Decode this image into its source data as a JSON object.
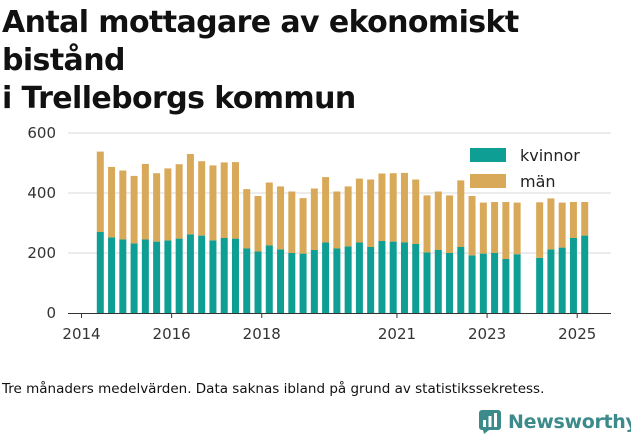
{
  "header": {
    "title_line1": "Antal mottagare av ekonomiskt bistånd",
    "title_line2": "i Trelleborgs kommun"
  },
  "footnote": "Tre månaders medelvärden. Data saknas ibland på grund av statistikssekretess.",
  "brand": {
    "name": "Newsworthy",
    "icon": "newsworthy-logo-icon",
    "color": "#3d8a8a"
  },
  "chart_data": {
    "type": "bar",
    "stacked": true,
    "title": "",
    "xlabel": "",
    "ylabel": "",
    "ylim": [
      0,
      600
    ],
    "yticks": [
      0,
      200,
      400,
      600
    ],
    "xticks": [
      "2014",
      "2016",
      "2018",
      "2021",
      "2023",
      "2025"
    ],
    "grid": true,
    "legend_position": "top-right",
    "categories": [
      "2014-06",
      "2014-09",
      "2014-12",
      "2015-03",
      "2015-06",
      "2015-09",
      "2015-12",
      "2016-03",
      "2016-06",
      "2016-09",
      "2016-12",
      "2017-03",
      "2017-06",
      "2017-09",
      "2017-12",
      "2018-03",
      "2018-06",
      "2018-09",
      "2018-12",
      "2019-03",
      "2019-06",
      "2019-09",
      "2019-12",
      "2020-03",
      "2020-06",
      "2020-09",
      "2020-12",
      "2021-03",
      "2021-06",
      "2021-09",
      "2021-12",
      "2022-03",
      "2022-06",
      "2022-09",
      "2022-12",
      "2023-03",
      "2023-06",
      "2023-09",
      "2024-03",
      "2024-06",
      "2024-09",
      "2024-12",
      "2025-03"
    ],
    "series": [
      {
        "name": "kvinnor",
        "color": "#0e9e94",
        "values": [
          270,
          252,
          245,
          232,
          245,
          238,
          242,
          248,
          262,
          258,
          242,
          250,
          248,
          215,
          205,
          225,
          212,
          200,
          198,
          210,
          235,
          215,
          222,
          235,
          220,
          240,
          238,
          235,
          230,
          202,
          210,
          200,
          220,
          192,
          198,
          200,
          180,
          196,
          184,
          212,
          218,
          250,
          258
        ]
      },
      {
        "name": "män",
        "color": "#d9a95a",
        "values": [
          268,
          235,
          230,
          225,
          252,
          228,
          240,
          248,
          268,
          248,
          250,
          252,
          255,
          198,
          185,
          210,
          210,
          205,
          185,
          205,
          218,
          190,
          200,
          213,
          225,
          225,
          228,
          232,
          215,
          190,
          195,
          192,
          222,
          198,
          170,
          170,
          190,
          172,
          185,
          170,
          150,
          120,
          112
        ]
      }
    ]
  }
}
